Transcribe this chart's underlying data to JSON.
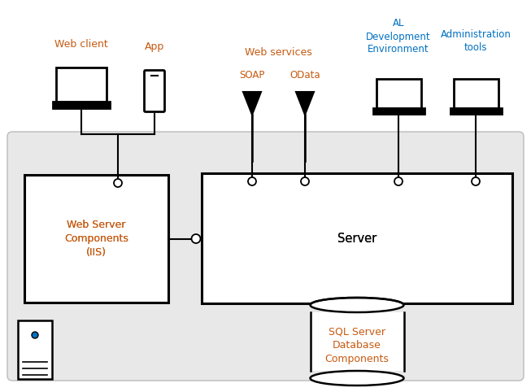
{
  "bg_color": "#ffffff",
  "system_box_color": "#e4e4e4",
  "text_color": "#c55a11",
  "server_text_color": "#000000",
  "al_dev_color": "#0070c0",
  "admin_color": "#0070c0",
  "line_color": "#000000",
  "fig_width": 6.53,
  "fig_height": 4.82,
  "web_client_label": "Web client",
  "app_label": "App",
  "web_services_label": "Web services",
  "soap_label": "SOAP",
  "odata_label": "OData",
  "al_dev_label": "AL\nDevelopment\nEnvironment",
  "admin_label": "Administration\ntools",
  "web_server_label": "Web Server\nComponents\n(IIS)",
  "server_label": "Server",
  "sql_label": "SQL Server\nDatabase\nComponents"
}
